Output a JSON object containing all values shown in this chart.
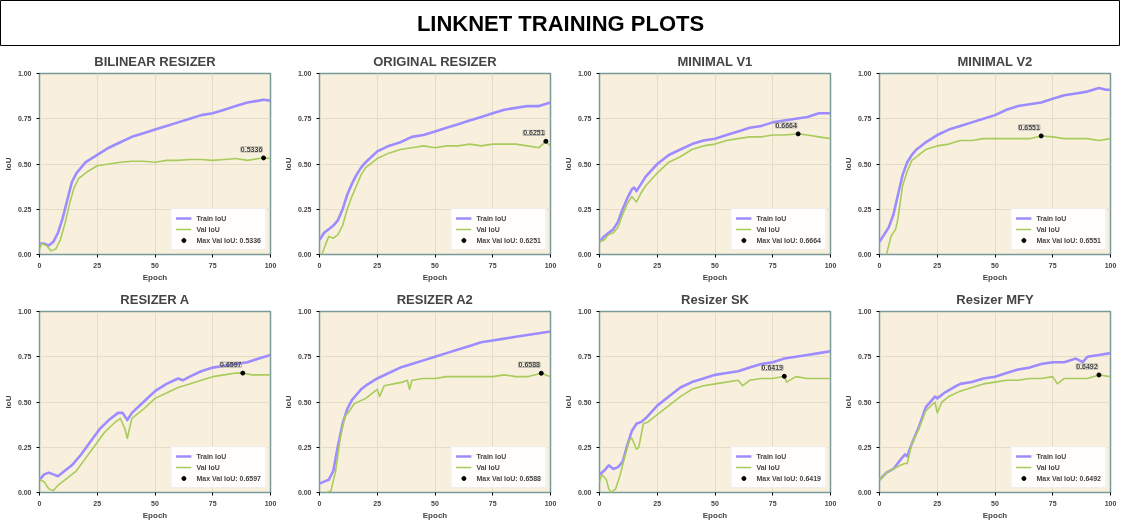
{
  "chart_data": [
    {
      "type": "other",
      "title": "LINKNET TRAINING PLOTS"
    },
    {
      "type": "line",
      "title": "BILINEAR RESIZER",
      "xlabel": "Epoch",
      "ylabel": "IoU",
      "xlim": [
        0,
        100
      ],
      "ylim": [
        0,
        1
      ],
      "xticks": [
        0,
        25,
        50,
        75,
        100
      ],
      "yticks": [
        {
          "value": 0,
          "label": "0.00"
        },
        {
          "value": 0.25,
          "label": "0.25"
        },
        {
          "value": 0.5,
          "label": "0.50"
        },
        {
          "value": 0.75,
          "label": "0.75"
        },
        {
          "value": 1,
          "label": "1.00"
        }
      ],
      "grid": true,
      "legend": "bottom right",
      "series": [
        {
          "name": "Train IoU",
          "color": "#9d8cff",
          "x": [
            0,
            2,
            4,
            6,
            8,
            10,
            12,
            14,
            16,
            18,
            20,
            25,
            30,
            35,
            40,
            45,
            50,
            55,
            60,
            65,
            70,
            75,
            80,
            85,
            90,
            95,
            97,
            100
          ],
          "values": [
            0.06,
            0.06,
            0.05,
            0.07,
            0.12,
            0.2,
            0.3,
            0.4,
            0.45,
            0.48,
            0.51,
            0.55,
            0.59,
            0.62,
            0.65,
            0.67,
            0.69,
            0.71,
            0.73,
            0.75,
            0.77,
            0.78,
            0.8,
            0.82,
            0.84,
            0.85,
            0.855,
            0.85
          ]
        },
        {
          "name": "Val IoU",
          "color": "#a8cc5c",
          "x": [
            0,
            1,
            3,
            5,
            7,
            9,
            11,
            13,
            15,
            17,
            19,
            21,
            25,
            30,
            35,
            40,
            45,
            50,
            55,
            60,
            65,
            70,
            75,
            80,
            85,
            90,
            95,
            97,
            100
          ],
          "values": [
            0.03,
            0.06,
            0.05,
            0.02,
            0.03,
            0.08,
            0.17,
            0.28,
            0.37,
            0.42,
            0.44,
            0.46,
            0.49,
            0.5,
            0.51,
            0.515,
            0.515,
            0.51,
            0.52,
            0.52,
            0.525,
            0.525,
            0.52,
            0.525,
            0.53,
            0.52,
            0.53,
            0.5336,
            0.53
          ]
        },
        {
          "name": "Max Val IoU: 0.5336",
          "type": "scatter",
          "marker": "circle",
          "color": "#000000",
          "x": [
            97
          ],
          "values": [
            0.5336
          ]
        }
      ],
      "annotations": [
        {
          "text": "0.5336",
          "x": 97,
          "y": 0.5336
        }
      ]
    },
    {
      "type": "line",
      "title": "ORIGINAL RESIZER",
      "xlabel": "Epoch",
      "ylabel": "IoU",
      "xlim": [
        0,
        100
      ],
      "ylim": [
        0,
        1
      ],
      "xticks": [
        0,
        25,
        50,
        75,
        100
      ],
      "yticks": [
        {
          "value": 0,
          "label": "0.00"
        },
        {
          "value": 0.25,
          "label": "0.25"
        },
        {
          "value": 0.5,
          "label": "0.50"
        },
        {
          "value": 0.75,
          "label": "0.75"
        },
        {
          "value": 1,
          "label": "1.00"
        }
      ],
      "grid": true,
      "legend": "bottom right",
      "series": [
        {
          "name": "Train IoU",
          "color": "#9d8cff",
          "x": [
            0,
            2,
            4,
            6,
            8,
            10,
            12,
            14,
            16,
            18,
            20,
            25,
            30,
            35,
            40,
            45,
            50,
            55,
            60,
            65,
            70,
            75,
            80,
            85,
            90,
            95,
            100
          ],
          "values": [
            0.08,
            0.12,
            0.14,
            0.16,
            0.19,
            0.25,
            0.33,
            0.39,
            0.44,
            0.48,
            0.51,
            0.57,
            0.6,
            0.62,
            0.65,
            0.66,
            0.68,
            0.7,
            0.72,
            0.74,
            0.76,
            0.78,
            0.8,
            0.81,
            0.82,
            0.82,
            0.84
          ]
        },
        {
          "name": "Val IoU",
          "color": "#a8cc5c",
          "x": [
            1,
            4,
            6,
            8,
            10,
            12,
            14,
            16,
            18,
            20,
            25,
            30,
            35,
            40,
            45,
            50,
            55,
            60,
            65,
            70,
            75,
            80,
            85,
            90,
            95,
            98,
            100
          ],
          "values": [
            0.0,
            0.1,
            0.09,
            0.11,
            0.16,
            0.25,
            0.32,
            0.38,
            0.44,
            0.48,
            0.53,
            0.56,
            0.58,
            0.59,
            0.6,
            0.59,
            0.6,
            0.6,
            0.61,
            0.6,
            0.61,
            0.61,
            0.61,
            0.6,
            0.59,
            0.6251,
            0.6
          ]
        },
        {
          "name": "Max Val IoU: 0.6251",
          "type": "scatter",
          "marker": "circle",
          "color": "#000000",
          "x": [
            98
          ],
          "values": [
            0.6251
          ]
        }
      ],
      "annotations": [
        {
          "text": "0.6251",
          "x": 98,
          "y": 0.6251
        }
      ]
    },
    {
      "type": "line",
      "title": "MINIMAL V1",
      "xlabel": "Epoch",
      "ylabel": "IoU",
      "xlim": [
        0,
        100
      ],
      "ylim": [
        0,
        1
      ],
      "xticks": [
        0,
        25,
        50,
        75,
        100
      ],
      "yticks": [
        {
          "value": 0,
          "label": "0.00"
        },
        {
          "value": 0.25,
          "label": "0.25"
        },
        {
          "value": 0.5,
          "label": "0.50"
        },
        {
          "value": 0.75,
          "label": "0.75"
        },
        {
          "value": 1,
          "label": "1.00"
        }
      ],
      "grid": true,
      "legend": "bottom right",
      "series": [
        {
          "name": "Train IoU",
          "color": "#9d8cff",
          "x": [
            0,
            2,
            4,
            6,
            8,
            10,
            12,
            14,
            15,
            16,
            18,
            20,
            25,
            30,
            35,
            40,
            45,
            50,
            55,
            60,
            65,
            70,
            75,
            80,
            85,
            90,
            95,
            100
          ],
          "values": [
            0.07,
            0.1,
            0.12,
            0.14,
            0.18,
            0.25,
            0.31,
            0.36,
            0.37,
            0.35,
            0.39,
            0.43,
            0.5,
            0.55,
            0.58,
            0.61,
            0.63,
            0.64,
            0.66,
            0.68,
            0.7,
            0.71,
            0.73,
            0.74,
            0.75,
            0.76,
            0.78,
            0.78
          ]
        },
        {
          "name": "Val IoU",
          "color": "#a8cc5c",
          "x": [
            0,
            2,
            4,
            6,
            8,
            10,
            12,
            14,
            16,
            18,
            20,
            25,
            30,
            35,
            40,
            45,
            50,
            55,
            60,
            65,
            70,
            75,
            80,
            86,
            90,
            95,
            100
          ],
          "values": [
            0.07,
            0.08,
            0.11,
            0.12,
            0.15,
            0.22,
            0.28,
            0.32,
            0.29,
            0.34,
            0.38,
            0.45,
            0.51,
            0.54,
            0.58,
            0.6,
            0.61,
            0.63,
            0.64,
            0.65,
            0.65,
            0.66,
            0.66,
            0.6664,
            0.66,
            0.65,
            0.64
          ]
        },
        {
          "name": "Max Val IoU: 0.6664",
          "type": "scatter",
          "marker": "circle",
          "color": "#000000",
          "x": [
            86
          ],
          "values": [
            0.6664
          ]
        }
      ],
      "annotations": [
        {
          "text": "0.6664",
          "x": 86,
          "y": 0.6664
        }
      ]
    },
    {
      "type": "line",
      "title": "MINIMAL V2",
      "xlabel": "Epoch",
      "ylabel": "IoU",
      "xlim": [
        0,
        100
      ],
      "ylim": [
        0,
        1
      ],
      "xticks": [
        0,
        25,
        50,
        75,
        100
      ],
      "yticks": [
        {
          "value": 0,
          "label": "0.00"
        },
        {
          "value": 0.25,
          "label": "0.25"
        },
        {
          "value": 0.5,
          "label": "0.50"
        },
        {
          "value": 0.75,
          "label": "0.75"
        },
        {
          "value": 1,
          "label": "1.00"
        }
      ],
      "grid": true,
      "legend": "bottom right",
      "series": [
        {
          "name": "Train IoU",
          "color": "#9d8cff",
          "x": [
            0,
            2,
            4,
            6,
            8,
            10,
            12,
            14,
            16,
            18,
            20,
            25,
            30,
            35,
            40,
            45,
            50,
            55,
            60,
            65,
            70,
            75,
            80,
            85,
            90,
            95,
            98,
            100
          ],
          "values": [
            0.07,
            0.11,
            0.15,
            0.22,
            0.33,
            0.44,
            0.51,
            0.55,
            0.58,
            0.6,
            0.62,
            0.66,
            0.69,
            0.71,
            0.73,
            0.75,
            0.77,
            0.8,
            0.82,
            0.83,
            0.84,
            0.86,
            0.88,
            0.89,
            0.9,
            0.92,
            0.91,
            0.91
          ]
        },
        {
          "name": "Val IoU",
          "color": "#a8cc5c",
          "x": [
            3,
            5,
            7,
            8,
            10,
            12,
            14,
            16,
            18,
            20,
            25,
            30,
            35,
            40,
            45,
            50,
            55,
            60,
            65,
            70,
            75,
            80,
            85,
            90,
            95,
            100
          ],
          "values": [
            0.0,
            0.1,
            0.14,
            0.2,
            0.38,
            0.46,
            0.52,
            0.54,
            0.56,
            0.58,
            0.6,
            0.61,
            0.63,
            0.63,
            0.64,
            0.64,
            0.64,
            0.64,
            0.64,
            0.6551,
            0.65,
            0.64,
            0.64,
            0.64,
            0.63,
            0.64
          ]
        },
        {
          "name": "Max Val IoU: 0.6551",
          "type": "scatter",
          "marker": "circle",
          "color": "#000000",
          "x": [
            70
          ],
          "values": [
            0.6551
          ]
        }
      ],
      "annotations": [
        {
          "text": "0.6551",
          "x": 70,
          "y": 0.6551
        }
      ]
    },
    {
      "type": "line",
      "title": "RESIZER A",
      "xlabel": "Epoch",
      "ylabel": "IoU",
      "xlim": [
        0,
        100
      ],
      "ylim": [
        0,
        1
      ],
      "xticks": [
        0,
        25,
        50,
        75,
        100
      ],
      "yticks": [
        {
          "value": 0,
          "label": "0.00"
        },
        {
          "value": 0.25,
          "label": "0.25"
        },
        {
          "value": 0.5,
          "label": "0.50"
        },
        {
          "value": 0.75,
          "label": "0.75"
        },
        {
          "value": 1,
          "label": "1.00"
        }
      ],
      "grid": true,
      "legend": "bottom right",
      "series": [
        {
          "name": "Train IoU",
          "color": "#9d8cff",
          "x": [
            0,
            2,
            4,
            6,
            8,
            10,
            14,
            18,
            22,
            26,
            30,
            34,
            36,
            38,
            40,
            45,
            50,
            55,
            60,
            62,
            65,
            70,
            75,
            80,
            85,
            90,
            95,
            100
          ],
          "values": [
            0.07,
            0.1,
            0.11,
            0.1,
            0.09,
            0.11,
            0.15,
            0.21,
            0.28,
            0.35,
            0.4,
            0.44,
            0.44,
            0.4,
            0.44,
            0.5,
            0.56,
            0.6,
            0.63,
            0.62,
            0.64,
            0.67,
            0.69,
            0.7,
            0.71,
            0.72,
            0.74,
            0.76
          ]
        },
        {
          "name": "Val IoU",
          "color": "#a8cc5c",
          "x": [
            0,
            2,
            4,
            6,
            8,
            12,
            16,
            20,
            24,
            28,
            32,
            35,
            37,
            38,
            40,
            45,
            50,
            55,
            60,
            65,
            70,
            75,
            80,
            85,
            88,
            92,
            96,
            100
          ],
          "values": [
            0.07,
            0.06,
            0.02,
            0.01,
            0.04,
            0.08,
            0.12,
            0.19,
            0.26,
            0.33,
            0.38,
            0.41,
            0.35,
            0.3,
            0.41,
            0.46,
            0.52,
            0.55,
            0.58,
            0.6,
            0.62,
            0.64,
            0.65,
            0.66,
            0.6597,
            0.65,
            0.65,
            0.65
          ]
        },
        {
          "name": "Max Val IoU: 0.6597",
          "type": "scatter",
          "marker": "circle",
          "color": "#000000",
          "x": [
            88
          ],
          "values": [
            0.6597
          ]
        }
      ],
      "annotations": [
        {
          "text": "0.6597",
          "x": 88,
          "y": 0.6597
        }
      ]
    },
    {
      "type": "line",
      "title": "RESIZER A2",
      "xlabel": "Epoch",
      "ylabel": "IoU",
      "xlim": [
        0,
        100
      ],
      "ylim": [
        0,
        1
      ],
      "xticks": [
        0,
        25,
        50,
        75,
        100
      ],
      "yticks": [
        {
          "value": 0,
          "label": "0.00"
        },
        {
          "value": 0.25,
          "label": "0.25"
        },
        {
          "value": 0.5,
          "label": "0.50"
        },
        {
          "value": 0.75,
          "label": "0.75"
        },
        {
          "value": 1,
          "label": "1.00"
        }
      ],
      "grid": true,
      "legend": "bottom right",
      "series": [
        {
          "name": "Train IoU",
          "color": "#9d8cff",
          "x": [
            0,
            2,
            4,
            6,
            8,
            10,
            12,
            14,
            16,
            18,
            20,
            25,
            30,
            35,
            40,
            45,
            50,
            55,
            60,
            65,
            70,
            75,
            80,
            85,
            90,
            95,
            100
          ],
          "values": [
            0.05,
            0.06,
            0.07,
            0.12,
            0.26,
            0.38,
            0.46,
            0.51,
            0.54,
            0.57,
            0.59,
            0.63,
            0.66,
            0.69,
            0.71,
            0.73,
            0.75,
            0.77,
            0.79,
            0.81,
            0.83,
            0.84,
            0.85,
            0.86,
            0.87,
            0.88,
            0.89
          ]
        },
        {
          "name": "Val IoU",
          "color": "#a8cc5c",
          "x": [
            3,
            5,
            7,
            9,
            11,
            13,
            15,
            20,
            25,
            26,
            28,
            32,
            36,
            38,
            39,
            40,
            45,
            50,
            55,
            60,
            65,
            70,
            75,
            80,
            85,
            90,
            96,
            100
          ],
          "values": [
            0.0,
            0.01,
            0.12,
            0.3,
            0.42,
            0.45,
            0.49,
            0.52,
            0.57,
            0.53,
            0.59,
            0.6,
            0.61,
            0.62,
            0.57,
            0.62,
            0.63,
            0.63,
            0.64,
            0.64,
            0.64,
            0.64,
            0.64,
            0.65,
            0.64,
            0.64,
            0.6588,
            0.64
          ]
        },
        {
          "name": "Max Val IoU: 0.6588",
          "type": "scatter",
          "marker": "circle",
          "color": "#000000",
          "x": [
            96
          ],
          "values": [
            0.6588
          ]
        }
      ],
      "annotations": [
        {
          "text": "0.6588",
          "x": 96,
          "y": 0.6588
        }
      ]
    },
    {
      "type": "line",
      "title": "Resizer SK",
      "xlabel": "Epoch",
      "ylabel": "IoU",
      "xlim": [
        0,
        100
      ],
      "ylim": [
        0,
        1
      ],
      "xticks": [
        0,
        25,
        50,
        75,
        100
      ],
      "yticks": [
        {
          "value": 0,
          "label": "0.00"
        },
        {
          "value": 0.25,
          "label": "0.25"
        },
        {
          "value": 0.5,
          "label": "0.50"
        },
        {
          "value": 0.75,
          "label": "0.75"
        },
        {
          "value": 1,
          "label": "1.00"
        }
      ],
      "grid": true,
      "legend": "bottom right",
      "series": [
        {
          "name": "Train IoU",
          "color": "#9d8cff",
          "x": [
            0,
            2,
            4,
            6,
            8,
            10,
            12,
            14,
            16,
            18,
            20,
            25,
            30,
            35,
            40,
            45,
            50,
            55,
            60,
            65,
            70,
            75,
            80,
            85,
            90,
            95,
            100
          ],
          "values": [
            0.1,
            0.12,
            0.15,
            0.13,
            0.14,
            0.17,
            0.26,
            0.34,
            0.38,
            0.39,
            0.41,
            0.48,
            0.53,
            0.58,
            0.61,
            0.63,
            0.65,
            0.66,
            0.67,
            0.69,
            0.71,
            0.72,
            0.74,
            0.75,
            0.76,
            0.77,
            0.78
          ]
        },
        {
          "name": "Val IoU",
          "color": "#a8cc5c",
          "x": [
            0,
            1,
            3,
            4,
            5,
            7,
            9,
            11,
            13,
            14,
            16,
            17,
            19,
            21,
            25,
            30,
            35,
            40,
            45,
            50,
            55,
            60,
            62,
            65,
            70,
            75,
            80,
            81,
            85,
            90,
            95,
            100
          ],
          "values": [
            0.06,
            0.1,
            0.07,
            0.02,
            0.0,
            0.02,
            0.1,
            0.2,
            0.29,
            0.3,
            0.24,
            0.25,
            0.38,
            0.39,
            0.43,
            0.48,
            0.53,
            0.57,
            0.59,
            0.6,
            0.61,
            0.62,
            0.59,
            0.62,
            0.63,
            0.63,
            0.6419,
            0.61,
            0.64,
            0.63,
            0.63,
            0.63
          ]
        },
        {
          "name": "Max Val IoU: 0.6419",
          "type": "scatter",
          "marker": "circle",
          "color": "#000000",
          "x": [
            80
          ],
          "values": [
            0.6419
          ]
        }
      ],
      "annotations": [
        {
          "text": "0.6419",
          "x": 80,
          "y": 0.6419
        }
      ]
    },
    {
      "type": "line",
      "title": "Resizer MFY",
      "xlabel": "Epoch",
      "ylabel": "IoU",
      "xlim": [
        0,
        100
      ],
      "ylim": [
        0,
        1
      ],
      "xticks": [
        0,
        25,
        50,
        75,
        100
      ],
      "yticks": [
        {
          "value": 0,
          "label": "0.00"
        },
        {
          "value": 0.25,
          "label": "0.25"
        },
        {
          "value": 0.5,
          "label": "0.50"
        },
        {
          "value": 0.75,
          "label": "0.75"
        },
        {
          "value": 1,
          "label": "1.00"
        }
      ],
      "grid": true,
      "legend": "bottom right",
      "series": [
        {
          "name": "Train IoU",
          "color": "#9d8cff",
          "x": [
            0,
            3,
            6,
            9,
            11,
            12,
            14,
            17,
            20,
            24,
            25,
            28,
            32,
            35,
            40,
            45,
            50,
            55,
            60,
            65,
            70,
            75,
            80,
            85,
            88,
            90,
            95,
            100
          ],
          "values": [
            0.07,
            0.11,
            0.13,
            0.18,
            0.21,
            0.2,
            0.27,
            0.36,
            0.47,
            0.53,
            0.52,
            0.55,
            0.58,
            0.6,
            0.61,
            0.63,
            0.64,
            0.66,
            0.68,
            0.69,
            0.71,
            0.72,
            0.72,
            0.74,
            0.72,
            0.75,
            0.76,
            0.77
          ]
        },
        {
          "name": "Val IoU",
          "color": "#a8cc5c",
          "x": [
            0,
            3,
            6,
            9,
            11,
            12,
            14,
            17,
            20,
            24,
            25,
            27,
            30,
            35,
            40,
            45,
            50,
            55,
            60,
            65,
            70,
            75,
            77,
            80,
            85,
            90,
            95,
            100
          ],
          "values": [
            0.07,
            0.11,
            0.13,
            0.15,
            0.16,
            0.16,
            0.27,
            0.35,
            0.45,
            0.5,
            0.44,
            0.5,
            0.53,
            0.56,
            0.58,
            0.6,
            0.61,
            0.62,
            0.62,
            0.63,
            0.63,
            0.64,
            0.6,
            0.63,
            0.63,
            0.63,
            0.6492,
            0.64
          ]
        },
        {
          "name": "Max Val IoU: 0.6492",
          "type": "scatter",
          "marker": "circle",
          "color": "#000000",
          "x": [
            95
          ],
          "values": [
            0.6492
          ]
        }
      ],
      "annotations": [
        {
          "text": "0.6492",
          "x": 95,
          "y": 0.6492
        }
      ]
    }
  ]
}
